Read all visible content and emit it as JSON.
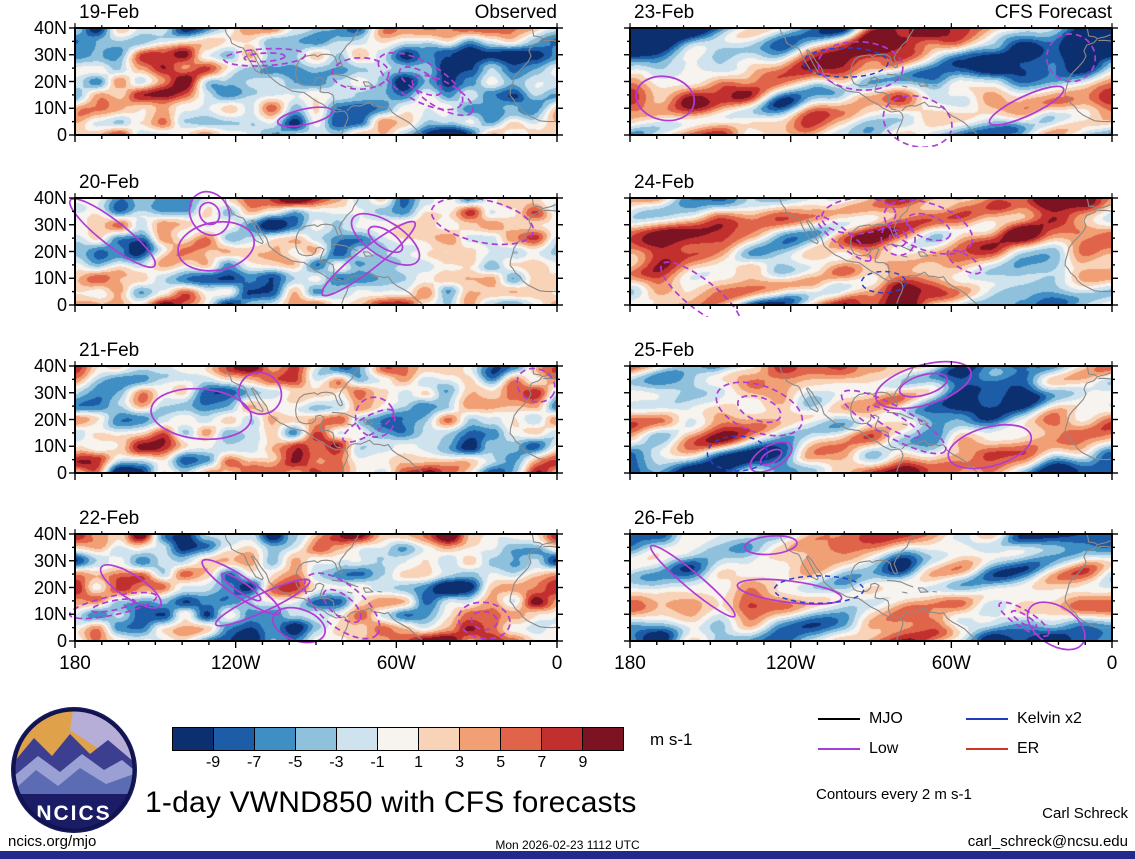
{
  "figure": {
    "title": "1-day VWND850 with CFS forecasts",
    "unit_label": "m s-1",
    "contour_note": "Contours every 2 m s-1",
    "credit_name": "Carl Schreck",
    "credit_email": "carl_schreck@ncsu.edu",
    "site": "ncics.org/mjo",
    "timestamp": "Mon 2026-02-23 1112 UTC",
    "logo_text": "NCICS"
  },
  "chart_data": {
    "type": "heatmap",
    "description": "Eight latitude-longitude filled-contour maps of 850-hPa meridional wind (VWND850) anomalies over 180W-0, 0-40N. Left column shows observed daily fields 19-22 Feb; right column shows CFS forecast fields 23-26 Feb. Shading every 2 m s-1 from -9 (dark blue) to 9 (dark red); magenta contours are Low-filtered anomalies, contours every 2 m s-1.",
    "columns": [
      {
        "header": "Observed",
        "dates": [
          "19-Feb",
          "20-Feb",
          "21-Feb",
          "22-Feb"
        ]
      },
      {
        "header": "CFS Forecast",
        "dates": [
          "23-Feb",
          "24-Feb",
          "25-Feb",
          "26-Feb"
        ]
      }
    ],
    "x_axis": {
      "tick_labels": [
        "180",
        "120W",
        "60W",
        "0"
      ],
      "domain_lon": [
        180,
        360
      ],
      "minor_tick_deg": 10,
      "major_tick_deg": 60
    },
    "y_axis": {
      "tick_labels": [
        "40N",
        "30N",
        "20N",
        "10N",
        "0"
      ],
      "domain_lat": [
        0,
        40
      ],
      "tick_deg": 10
    },
    "colorbar": {
      "levels": [
        -9,
        -7,
        -5,
        -3,
        -1,
        1,
        3,
        5,
        7,
        9
      ],
      "tick_labels": [
        "-9",
        "-7",
        "-5",
        "-3",
        "-1",
        "1",
        "3",
        "5",
        "7",
        "9"
      ],
      "colors": [
        "#0c2f6f",
        "#1d5ca7",
        "#3f8ec4",
        "#8fc1dc",
        "#cfe3ef",
        "#f7f3ee",
        "#f8d3b8",
        "#f1a075",
        "#e06449",
        "#c22f2f",
        "#7c1322"
      ],
      "unit": "m s-1",
      "shading_interval_ms1": 2
    },
    "legend": [
      {
        "label": "MJO",
        "color": "#000000"
      },
      {
        "label": "Kelvin x2",
        "color": "#1f3bbf"
      },
      {
        "label": "Low",
        "color": "#a43fd9"
      },
      {
        "label": "ER",
        "color": "#cf3526"
      }
    ]
  }
}
